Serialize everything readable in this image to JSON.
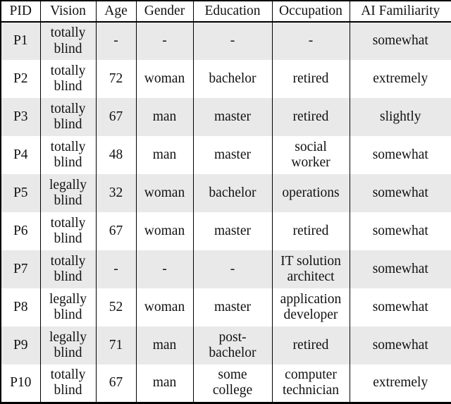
{
  "table": {
    "title": "participant-demographics",
    "columns": [
      "PID",
      "Vision",
      "Age",
      "Gender",
      "Education",
      "Occupation",
      "AI Familiarity"
    ],
    "column_keys": [
      "pid",
      "vision",
      "age",
      "gender",
      "education",
      "occupation",
      "ai_familiarity"
    ],
    "rows": [
      {
        "pid": "P1",
        "vision": "totally\nblind",
        "age": "-",
        "gender": "-",
        "education": "-",
        "occupation": "-",
        "ai_familiarity": "somewhat"
      },
      {
        "pid": "P2",
        "vision": "totally\nblind",
        "age": "72",
        "gender": "woman",
        "education": "bachelor",
        "occupation": "retired",
        "ai_familiarity": "extremely"
      },
      {
        "pid": "P3",
        "vision": "totally\nblind",
        "age": "67",
        "gender": "man",
        "education": "master",
        "occupation": "retired",
        "ai_familiarity": "slightly"
      },
      {
        "pid": "P4",
        "vision": "totally\nblind",
        "age": "48",
        "gender": "man",
        "education": "master",
        "occupation": "social\nworker",
        "ai_familiarity": "somewhat"
      },
      {
        "pid": "P5",
        "vision": "legally\nblind",
        "age": "32",
        "gender": "woman",
        "education": "bachelor",
        "occupation": "operations",
        "ai_familiarity": "somewhat"
      },
      {
        "pid": "P6",
        "vision": "totally\nblind",
        "age": "67",
        "gender": "woman",
        "education": "master",
        "occupation": "retired",
        "ai_familiarity": "somewhat"
      },
      {
        "pid": "P7",
        "vision": "totally\nblind",
        "age": "-",
        "gender": "-",
        "education": "-",
        "occupation": "IT solution\narchitect",
        "ai_familiarity": "somewhat"
      },
      {
        "pid": "P8",
        "vision": "legally\nblind",
        "age": "52",
        "gender": "woman",
        "education": "master",
        "occupation": "application\ndeveloper",
        "ai_familiarity": "somewhat"
      },
      {
        "pid": "P9",
        "vision": "legally\nblind",
        "age": "71",
        "gender": "man",
        "education": "post-\nbachelor",
        "occupation": "retired",
        "ai_familiarity": "somewhat"
      },
      {
        "pid": "P10",
        "vision": "totally\nblind",
        "age": "67",
        "gender": "man",
        "education": "some\ncollege",
        "occupation": "computer\ntechnician",
        "ai_familiarity": "extremely"
      }
    ],
    "colors": {
      "stripe_background": "#e9e9e9",
      "row_background": "#ffffff",
      "border": "#000000",
      "text": "#111111"
    }
  }
}
